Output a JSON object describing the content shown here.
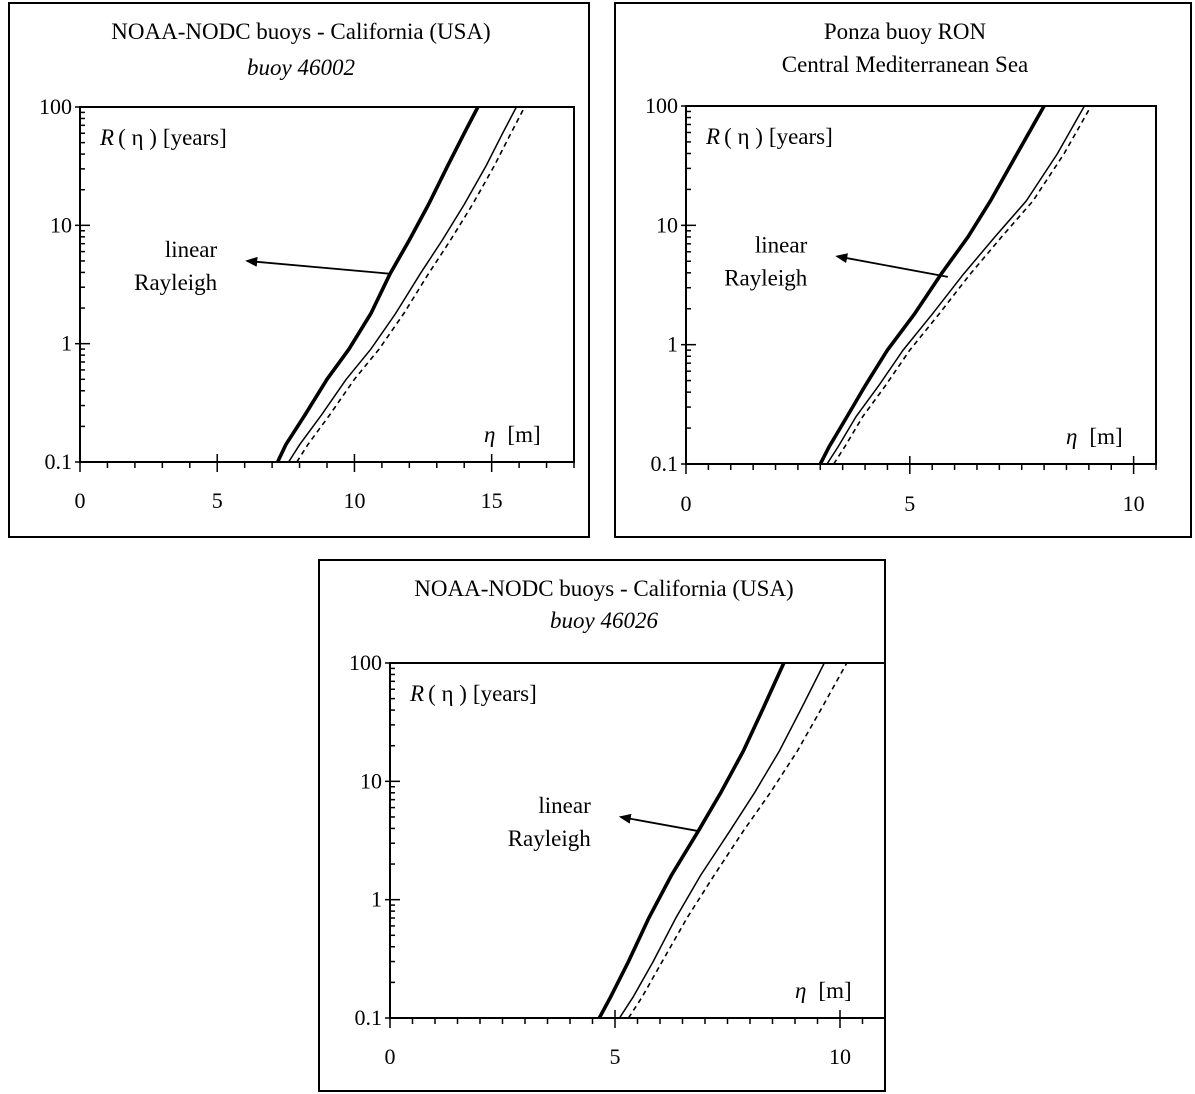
{
  "chart_data": [
    {
      "type": "line",
      "title": "NOAA-NODC buoys - California (USA)",
      "subtitle": "buoy 46002",
      "xlabel_symbol": "η",
      "xlabel_unit": "[m]",
      "ylabel_symbol": "R",
      "ylabel_arg": "( η )",
      "ylabel_unit": "[years]",
      "y_scale": "log",
      "xlim": [
        0,
        18
      ],
      "ylim": [
        0.1,
        100
      ],
      "x_tick_labels": [
        "0",
        "5",
        "10",
        "15"
      ],
      "y_tick_labels": [
        "0.1",
        "1",
        "10",
        "100"
      ],
      "annotation": [
        "linear",
        "Rayleigh"
      ],
      "annotation_target": {
        "x": 11.3,
        "y": 3.9
      },
      "annotation_text_anchor": {
        "x": 5.8,
        "y": 5.0
      },
      "series": [
        {
          "style": "thick",
          "x": [
            7.2,
            7.5,
            8.2,
            9.0,
            9.8,
            10.6,
            11.3,
            12.0,
            12.7,
            13.4,
            14.0,
            14.5
          ],
          "y": [
            0.1,
            0.14,
            0.25,
            0.5,
            0.9,
            1.8,
            3.9,
            7.5,
            15,
            32,
            60,
            100
          ]
        },
        {
          "style": "thin",
          "x": [
            7.6,
            8.0,
            8.8,
            9.7,
            10.6,
            11.5,
            12.4,
            13.2,
            14.0,
            14.8,
            15.4,
            15.9
          ],
          "y": [
            0.1,
            0.14,
            0.25,
            0.5,
            0.9,
            1.8,
            3.9,
            7.5,
            15,
            32,
            60,
            100
          ]
        },
        {
          "style": "dashed",
          "x": [
            7.9,
            8.3,
            9.1,
            10.0,
            10.9,
            11.8,
            12.7,
            13.5,
            14.3,
            15.1,
            15.7,
            16.2
          ],
          "y": [
            0.1,
            0.14,
            0.25,
            0.5,
            0.9,
            1.8,
            3.9,
            7.5,
            15,
            32,
            60,
            100
          ]
        }
      ]
    },
    {
      "type": "line",
      "title": "Ponza buoy RON",
      "subtitle": "Central Mediterranean Sea",
      "xlabel_symbol": "η",
      "xlabel_unit": "[m]",
      "ylabel_symbol": "R",
      "ylabel_arg": "( η )",
      "ylabel_unit": "[years]",
      "y_scale": "log",
      "xlim": [
        0,
        10.5
      ],
      "ylim": [
        0.1,
        100
      ],
      "x_tick_labels": [
        "0",
        "5",
        "10"
      ],
      "y_tick_labels": [
        "0.1",
        "1",
        "10",
        "100"
      ],
      "annotation": [
        "linear",
        "Rayleigh"
      ],
      "annotation_target": {
        "x": 5.85,
        "y": 3.7
      },
      "annotation_text_anchor": {
        "x": 3.2,
        "y": 5.5
      },
      "series": [
        {
          "style": "thick",
          "x": [
            3.0,
            3.2,
            3.6,
            4.0,
            4.5,
            5.1,
            5.7,
            6.3,
            6.8,
            7.4,
            8.0
          ],
          "y": [
            0.1,
            0.14,
            0.25,
            0.45,
            0.9,
            1.8,
            3.9,
            8,
            16,
            40,
            100
          ]
        },
        {
          "style": "thin",
          "x": [
            3.15,
            3.4,
            3.8,
            4.3,
            4.85,
            5.5,
            6.2,
            6.9,
            7.6,
            8.3,
            8.9
          ],
          "y": [
            0.1,
            0.14,
            0.25,
            0.45,
            0.9,
            1.8,
            3.9,
            8,
            16,
            40,
            100
          ]
        },
        {
          "style": "dashed",
          "x": [
            3.3,
            3.55,
            3.95,
            4.45,
            5.0,
            5.65,
            6.35,
            7.05,
            7.75,
            8.45,
            9.05
          ],
          "y": [
            0.1,
            0.14,
            0.25,
            0.45,
            0.9,
            1.8,
            3.9,
            8,
            16,
            40,
            100
          ]
        }
      ]
    },
    {
      "type": "line",
      "title": "NOAA-NODC buoys - California (USA)",
      "subtitle": "buoy 46026",
      "xlabel_symbol": "η",
      "xlabel_unit": "[m]",
      "ylabel_symbol": "R",
      "ylabel_arg": "( η )",
      "ylabel_unit": "[years]",
      "y_scale": "log",
      "xlim": [
        0,
        11
      ],
      "ylim": [
        0.1,
        100
      ],
      "x_tick_labels": [
        "0",
        "5",
        "10"
      ],
      "y_tick_labels": [
        "0.1",
        "1",
        "10",
        "100"
      ],
      "annotation": [
        "linear",
        "Rayleigh"
      ],
      "annotation_target": {
        "x": 6.85,
        "y": 3.8
      },
      "annotation_text_anchor": {
        "x": 4.95,
        "y": 5.0
      },
      "series": [
        {
          "style": "thick",
          "x": [
            4.65,
            4.9,
            5.3,
            5.75,
            6.25,
            6.85,
            7.35,
            7.85,
            8.3,
            8.75
          ],
          "y": [
            0.1,
            0.15,
            0.3,
            0.7,
            1.6,
            3.8,
            8,
            18,
            42,
            100
          ]
        },
        {
          "style": "thin",
          "x": [
            5.1,
            5.4,
            5.85,
            6.35,
            6.9,
            7.55,
            8.1,
            8.65,
            9.15,
            9.65
          ],
          "y": [
            0.1,
            0.15,
            0.3,
            0.7,
            1.6,
            3.8,
            8,
            18,
            42,
            100
          ]
        },
        {
          "style": "dashed",
          "x": [
            5.3,
            5.6,
            6.05,
            6.6,
            7.2,
            7.85,
            8.45,
            9.05,
            9.6,
            10.15
          ],
          "y": [
            0.1,
            0.15,
            0.3,
            0.7,
            1.6,
            3.8,
            8,
            18,
            42,
            100
          ]
        }
      ]
    }
  ]
}
